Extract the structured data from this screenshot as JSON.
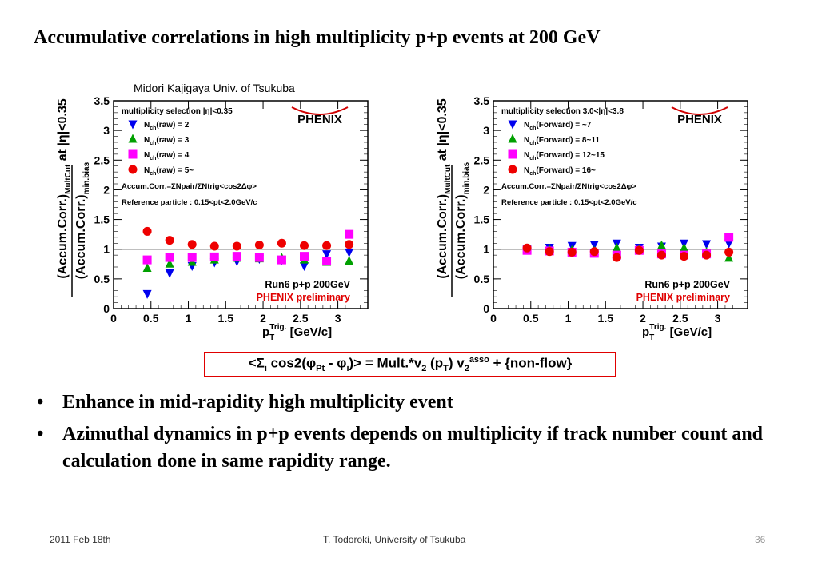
{
  "slide": {
    "title": "Accumulative correlations in high multiplicity p+p events at 200 GeV",
    "author": "Midori Kajigaya Univ. of Tsukuba",
    "bullets": [
      "Enhance in mid-rapidity high multiplicity event",
      "Azimuthal dynamics in p+p events depends on multiplicity if track number count and calculation done in same rapidity range."
    ],
    "formula": {
      "p1": "<Σ",
      "sub_i": "i",
      "p2": " cos2(φ",
      "sub_pt": "Pt",
      "p3": " - φ",
      "sub_i2": "i",
      "p4": ")> = Mult.*v",
      "sub_2": "2",
      "p5": " (p",
      "sub_T": "T",
      "p6": ") v",
      "sub_2b": "2",
      "sup_asso": "asso",
      "p7": " + {non-flow}"
    },
    "footer": {
      "date": "2011 Feb 18th",
      "author": "T. Todoroki, University of Tsukuba",
      "page": "36"
    }
  },
  "chart_data": [
    {
      "type": "scatter",
      "xlabel": "pT Trig. [GeV/c]",
      "xlabel_main": "p",
      "xlabel_sub": "T",
      "xlabel_sup": "Trig.",
      "xlabel_unit": "[GeV/c]",
      "ylabel_top": "(Accum.Corr.)",
      "ylabel_top_sub": "MultCut",
      "ylabel_top_suffix": "at |η|<0.35",
      "ylabel_bottom": "(Accum.Corr.)",
      "ylabel_bottom_sub": "min.bias",
      "xlim": [
        0,
        3.4
      ],
      "ylim": [
        0,
        3.5
      ],
      "xticks": [
        "0",
        "0.5",
        "1",
        "1.5",
        "2",
        "2.5",
        "3"
      ],
      "yticks": [
        "0",
        "0.5",
        "1",
        "1.5",
        "2",
        "2.5",
        "3",
        "3.5"
      ],
      "reference_line": 1,
      "selection": "multiplicity selection |η|<0.35",
      "accum_def": "Accum.Corr.=ΣNpair/ΣNtrig<cos2Δφ>",
      "reference_particle": "Reference particle : 0.15<pt<2.0GeV/c",
      "run_label": "Run6 p+p 200GeV",
      "prelim_label": "PHENIX preliminary",
      "logo": "PHENIX",
      "colors": {
        "blue": "#0000ee",
        "green": "#00a000",
        "magenta": "#ff00ff",
        "red": "#ee0000"
      },
      "series": [
        {
          "name": "Nch(raw) = 2",
          "legend_main": "N",
          "legend_sub": "ch",
          "legend_rest": "(raw) = 2",
          "marker": "triangle-down",
          "color": "#0000ee",
          "x": [
            0.45,
            0.75,
            1.05,
            1.35,
            1.65,
            1.95,
            2.25,
            2.55,
            2.85,
            3.15
          ],
          "y": [
            0.25,
            0.6,
            0.72,
            0.78,
            0.8,
            0.84,
            0.82,
            0.72,
            0.92,
            0.95
          ]
        },
        {
          "name": "Nch(raw) = 3",
          "legend_main": "N",
          "legend_sub": "ch",
          "legend_rest": "(raw) = 3",
          "marker": "triangle-up",
          "color": "#00a000",
          "x": [
            0.45,
            0.75,
            1.05,
            1.35,
            1.65,
            1.95,
            2.25,
            2.55,
            2.85,
            3.15
          ],
          "y": [
            0.68,
            0.75,
            0.78,
            0.82,
            0.85,
            0.84,
            0.85,
            0.82,
            0.78,
            0.8
          ]
        },
        {
          "name": "Nch(raw) = 4",
          "legend_main": "N",
          "legend_sub": "ch",
          "legend_rest": "(raw) = 4",
          "marker": "square",
          "color": "#ff00ff",
          "x": [
            0.45,
            0.75,
            1.05,
            1.35,
            1.65,
            1.95,
            2.25,
            2.55,
            2.85,
            3.15
          ],
          "y": [
            0.82,
            0.86,
            0.86,
            0.87,
            0.88,
            0.86,
            0.82,
            0.88,
            0.8,
            1.25
          ]
        },
        {
          "name": "Nch(raw) = 5~",
          "legend_main": "N",
          "legend_sub": "ch",
          "legend_rest": "(raw) = 5~",
          "marker": "circle",
          "color": "#ee0000",
          "x": [
            0.45,
            0.75,
            1.05,
            1.35,
            1.65,
            1.95,
            2.25,
            2.55,
            2.85,
            3.15
          ],
          "y": [
            1.3,
            1.15,
            1.08,
            1.05,
            1.05,
            1.07,
            1.1,
            1.06,
            1.06,
            1.08
          ]
        }
      ]
    },
    {
      "type": "scatter",
      "xlabel": "pT Trig. [GeV/c]",
      "xlabel_main": "p",
      "xlabel_sub": "T",
      "xlabel_sup": "Trig.",
      "xlabel_unit": "[GeV/c]",
      "ylabel_top": "(Accum.Corr.)",
      "ylabel_top_sub": "MultCut",
      "ylabel_top_suffix": "at |η|<0.35",
      "ylabel_bottom": "(Accum.Corr.)",
      "ylabel_bottom_sub": "min.bias",
      "xlim": [
        0,
        3.4
      ],
      "ylim": [
        0,
        3.5
      ],
      "xticks": [
        "0",
        "0.5",
        "1",
        "1.5",
        "2",
        "2.5",
        "3"
      ],
      "yticks": [
        "0",
        "0.5",
        "1",
        "1.5",
        "2",
        "2.5",
        "3",
        "3.5"
      ],
      "reference_line": 1,
      "selection": "multiplicity selection 3.0<|η|<3.8",
      "accum_def": "Accum.Corr.=ΣNpair/ΣNtrig<cos2Δφ>",
      "reference_particle": "Reference particle : 0.15<pt<2.0GeV/c",
      "run_label": "Run6 p+p 200GeV",
      "prelim_label": "PHENIX preliminary",
      "logo": "PHENIX",
      "colors": {
        "blue": "#0000ee",
        "green": "#00a000",
        "magenta": "#ff00ff",
        "red": "#ee0000"
      },
      "series": [
        {
          "name": "Nch(Forward) = ~7",
          "legend_main": "N",
          "legend_sub": "ch",
          "legend_rest": "(Forward) = ~7",
          "marker": "triangle-down",
          "color": "#0000ee",
          "x": [
            0.45,
            0.75,
            1.05,
            1.35,
            1.65,
            1.95,
            2.25,
            2.55,
            2.85,
            3.15
          ],
          "y": [
            1.0,
            1.03,
            1.06,
            1.08,
            1.1,
            1.03,
            1.05,
            1.1,
            1.09,
            1.1
          ]
        },
        {
          "name": "Nch(Forward) = 8~11",
          "legend_main": "N",
          "legend_sub": "ch",
          "legend_rest": "(Forward) = 8~11",
          "marker": "triangle-up",
          "color": "#00a000",
          "x": [
            0.45,
            0.75,
            1.05,
            1.35,
            1.65,
            1.95,
            2.25,
            2.55,
            2.85,
            3.15
          ],
          "y": [
            1.0,
            1.0,
            0.98,
            0.97,
            1.02,
            1.0,
            1.06,
            1.02,
            0.95,
            0.85
          ]
        },
        {
          "name": "Nch(Forward) = 12~15",
          "legend_main": "N",
          "legend_sub": "ch",
          "legend_rest": "(Forward) = 12~15",
          "marker": "square",
          "color": "#ff00ff",
          "x": [
            0.45,
            0.75,
            1.05,
            1.35,
            1.65,
            1.95,
            2.25,
            2.55,
            2.85,
            3.15
          ],
          "y": [
            0.98,
            0.97,
            0.95,
            0.93,
            0.9,
            0.98,
            0.92,
            0.9,
            0.92,
            1.2
          ]
        },
        {
          "name": "Nch(Forward) = 16~",
          "legend_main": "N",
          "legend_sub": "ch",
          "legend_rest": "(Forward) = 16~",
          "marker": "circle",
          "color": "#ee0000",
          "x": [
            0.45,
            0.75,
            1.05,
            1.35,
            1.65,
            1.95,
            2.25,
            2.55,
            2.85,
            3.15
          ],
          "y": [
            1.02,
            0.96,
            0.95,
            0.96,
            0.86,
            0.98,
            0.9,
            0.88,
            0.9,
            0.95
          ]
        }
      ]
    }
  ]
}
